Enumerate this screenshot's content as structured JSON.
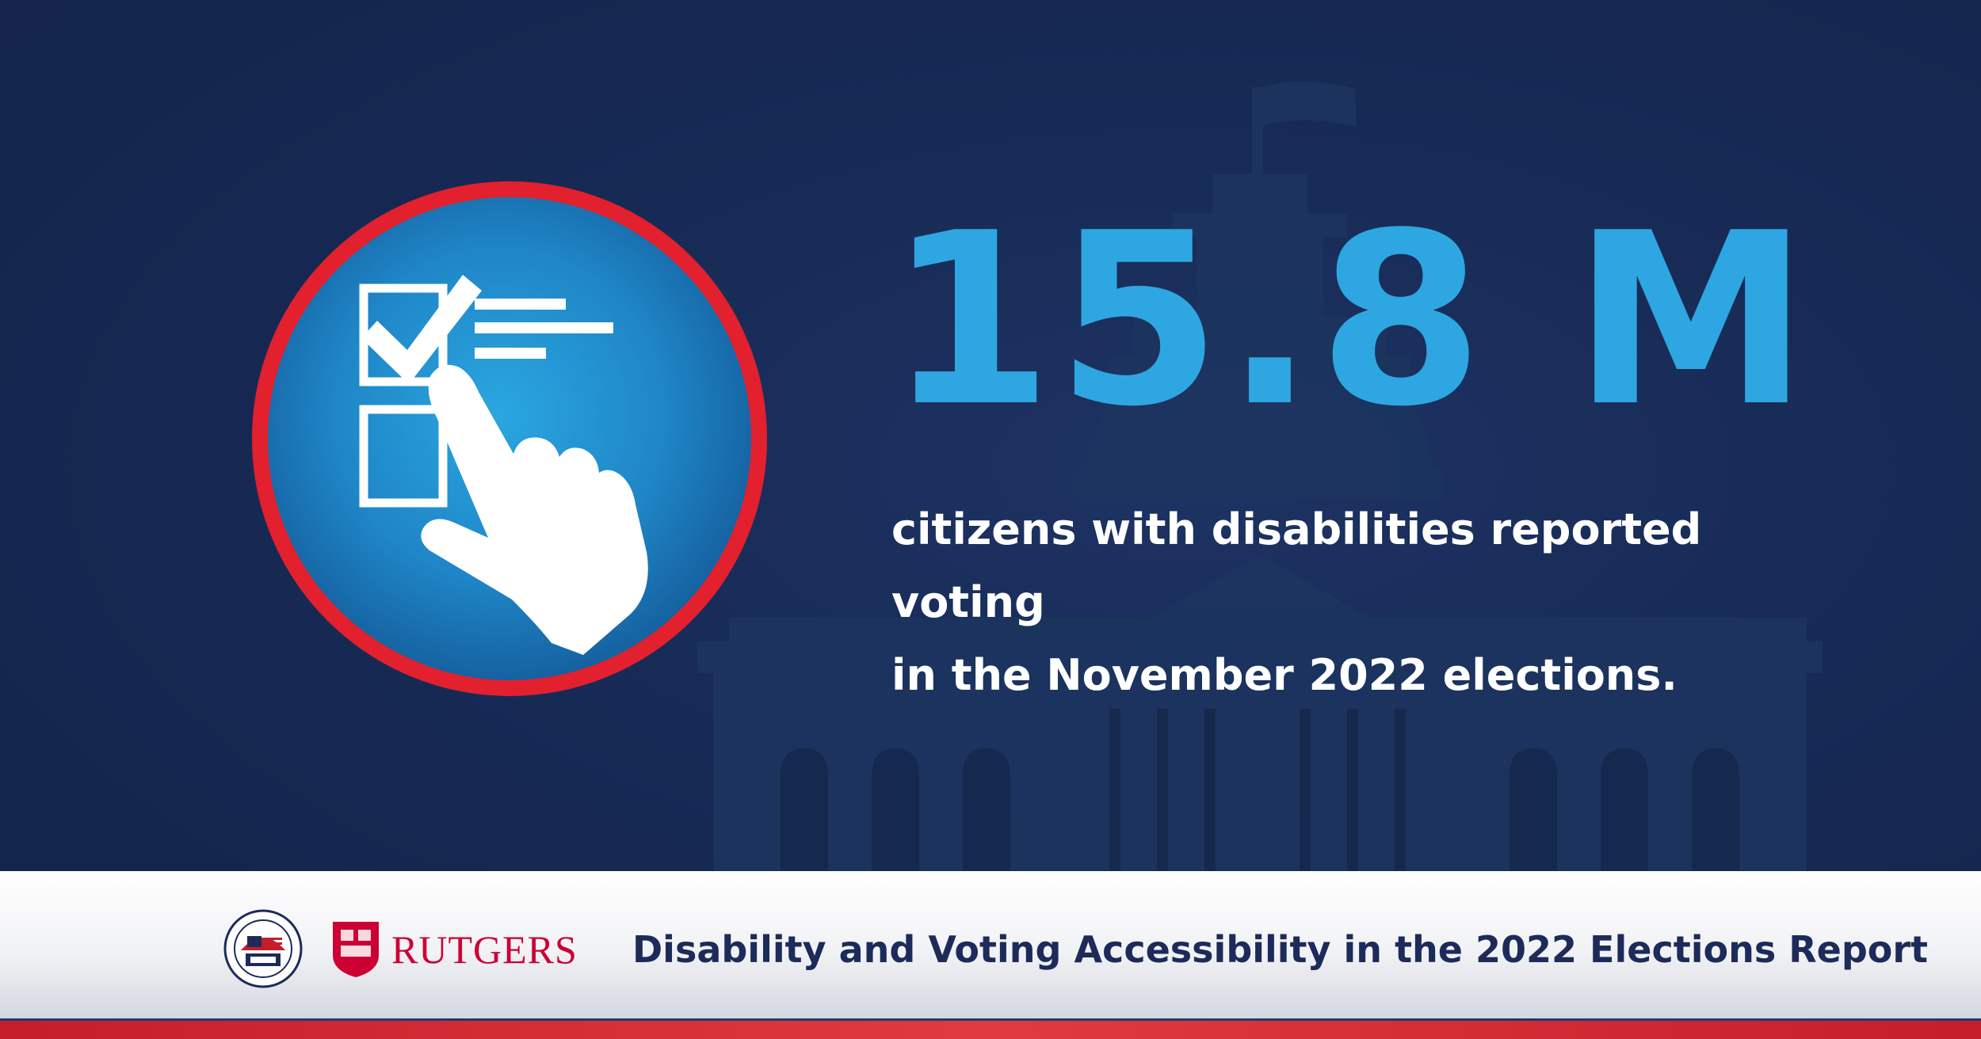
{
  "headline": {
    "stat": "15.8 M",
    "description_line1": "citizens with disabilities reported voting",
    "description_line2": "in the November 2022 elections."
  },
  "footer": {
    "org_logo_1": "eac-seal",
    "org_logo_2_text": "Rutgers",
    "report_title": "Disability and Voting Accessibility in the 2022 Elections Report"
  },
  "icons": {
    "main": "ballot-checklist-pointing-hand-icon",
    "background": "capitol-building-silhouette"
  },
  "colors": {
    "background_navy": "#172a55",
    "stat_blue": "#2ea6e1",
    "ring_red": "#e2202e",
    "circle_blue": "#1f86c7",
    "footer_text_navy": "#1c2b59",
    "rutgers_red": "#cc0033",
    "stripe_red": "#d42b33"
  }
}
